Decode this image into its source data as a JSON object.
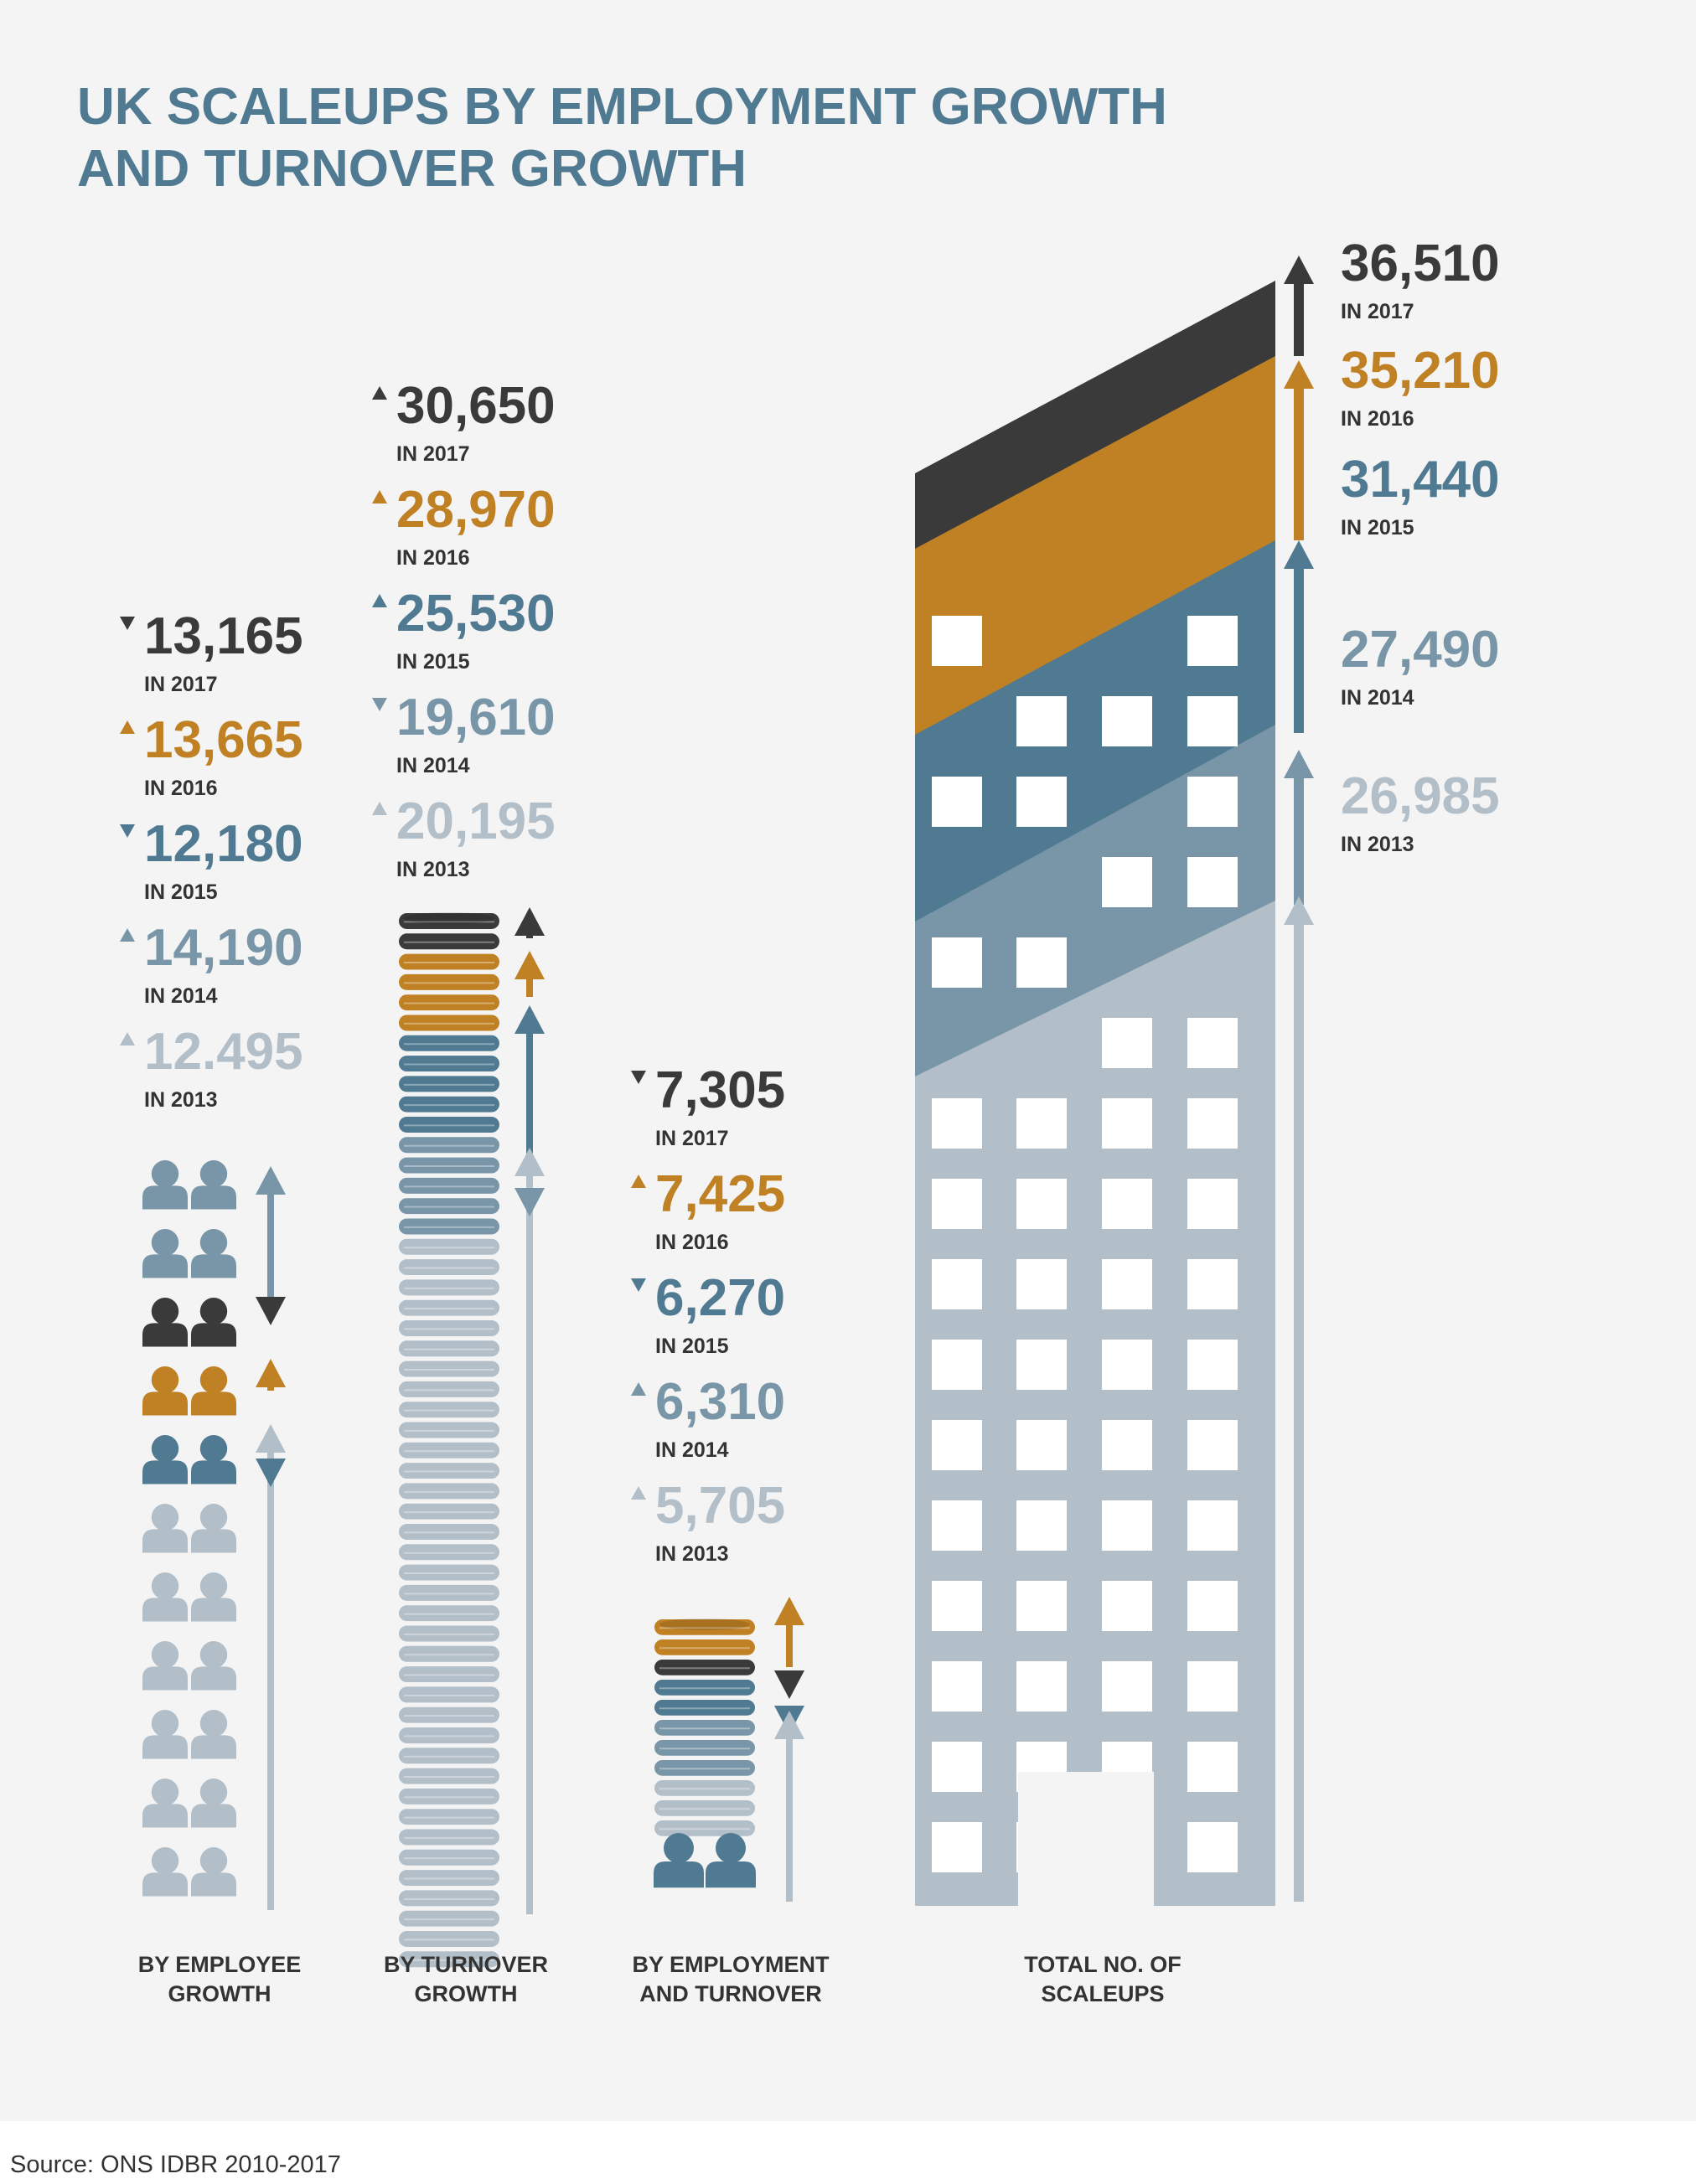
{
  "title_lines": [
    "UK SCALEUPS BY EMPLOYMENT GROWTH",
    "AND TURNOVER GROWTH"
  ],
  "source": "Source: ONS IDBR 2010-2017",
  "colors": {
    "background": "#f4f4f4",
    "title": "#4f7a91",
    "y2017": "#3a3a3a",
    "y2016": "#bf8124",
    "y2015": "#4f7a91",
    "y2014": "#7896a7",
    "y2013": "#b2bec8",
    "caption": "#333333"
  },
  "chart_data": [
    {
      "type": "bar",
      "category": "BY EMPLOYEE GROWTH",
      "caption_lines": [
        "BY EMPLOYEE",
        "GROWTH"
      ],
      "icon": "person-icon",
      "series": [
        {
          "year": "IN 2017",
          "value": 13165,
          "label": "13,165",
          "trend": "down"
        },
        {
          "year": "IN 2016",
          "value": 13665,
          "label": "13,665",
          "trend": "up"
        },
        {
          "year": "IN 2015",
          "value": 12180,
          "label": "12,180",
          "trend": "down"
        },
        {
          "year": "IN 2014",
          "value": 14190,
          "label": "14,190",
          "trend": "up"
        },
        {
          "year": "IN 2013",
          "value": 12495,
          "label": "12.495",
          "trend": "up"
        }
      ]
    },
    {
      "type": "bar",
      "category": "BY TURNOVER GROWTH",
      "caption_lines": [
        "BY TURNOVER",
        "GROWTH"
      ],
      "icon": "coin-stack-icon",
      "series": [
        {
          "year": "IN 2017",
          "value": 30650,
          "label": "30,650",
          "trend": "up"
        },
        {
          "year": "IN 2016",
          "value": 28970,
          "label": "28,970",
          "trend": "up"
        },
        {
          "year": "IN 2015",
          "value": 25530,
          "label": "25,530",
          "trend": "up"
        },
        {
          "year": "IN 2014",
          "value": 19610,
          "label": "19,610",
          "trend": "down"
        },
        {
          "year": "IN 2013",
          "value": 20195,
          "label": "20,195",
          "trend": "up"
        }
      ]
    },
    {
      "type": "bar",
      "category": "BY EMPLOYMENT AND TURNOVER",
      "caption_lines": [
        "BY EMPLOYMENT",
        "AND TURNOVER"
      ],
      "icon": "coin-stack-people-icon",
      "series": [
        {
          "year": "IN 2017",
          "value": 7305,
          "label": "7,305",
          "trend": "down"
        },
        {
          "year": "IN 2016",
          "value": 7425,
          "label": "7,425",
          "trend": "up"
        },
        {
          "year": "IN 2015",
          "value": 6270,
          "label": "6,270",
          "trend": "down"
        },
        {
          "year": "IN 2014",
          "value": 6310,
          "label": "6,310",
          "trend": "up"
        },
        {
          "year": "IN 2013",
          "value": 5705,
          "label": "5,705",
          "trend": "up"
        }
      ]
    },
    {
      "type": "bar",
      "category": "TOTAL NO. OF SCALEUPS",
      "caption_lines": [
        "TOTAL NO. OF",
        "SCALEUPS"
      ],
      "icon": "office-building-icon",
      "series": [
        {
          "year": "IN 2017",
          "value": 36510,
          "label": "36,510",
          "trend": "up"
        },
        {
          "year": "IN 2016",
          "value": 35210,
          "label": "35,210",
          "trend": "up"
        },
        {
          "year": "IN 2015",
          "value": 31440,
          "label": "31,440",
          "trend": "up"
        },
        {
          "year": "IN 2014",
          "value": 27490,
          "label": "27,490",
          "trend": "up"
        },
        {
          "year": "IN 2013",
          "value": 26985,
          "label": "26,985",
          "trend": "up"
        }
      ]
    }
  ]
}
